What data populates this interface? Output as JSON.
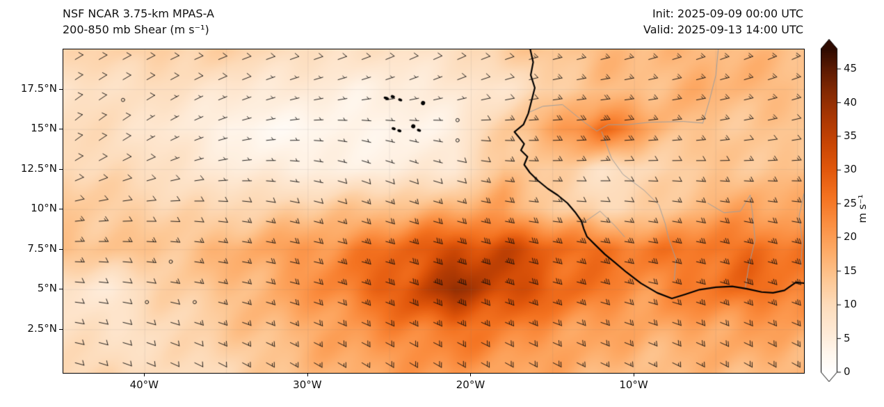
{
  "header": {
    "title_line1": "NSF NCAR 3.75-km MPAS-A",
    "title_line2": "200-850 mb Shear (m s⁻¹)",
    "init_label": "Init: 2025-09-09 00:00 UTC",
    "valid_label": "Valid: 2025-09-13 14:00 UTC"
  },
  "colorbar": {
    "label": "m s⁻¹"
  },
  "chart_data": {
    "type": "heatmap",
    "title": "200-850 mb Shear (m s⁻¹)",
    "model": "NSF NCAR 3.75-km MPAS-A",
    "init": "2025-09-09 00:00 UTC",
    "valid": "2025-09-13 14:00 UTC",
    "units": "m s⁻¹",
    "legend_position": "right",
    "lon_range": [
      -45.0,
      0.4
    ],
    "lat_range": [
      -0.2,
      20.0
    ],
    "x_tick_values": [
      -40,
      -30,
      -20,
      -10
    ],
    "x_tick_labels": [
      "40°W",
      "30°W",
      "20°W",
      "10°W"
    ],
    "y_tick_values": [
      17.5,
      15,
      12.5,
      10,
      7.5,
      5,
      2.5
    ],
    "y_tick_labels": [
      "17.5°N",
      "15°N",
      "12.5°N",
      "10°N",
      "7.5°N",
      "5°N",
      "2.5°N"
    ],
    "colorbar": {
      "ticks": [
        0,
        5,
        10,
        15,
        20,
        25,
        30,
        35,
        40,
        45
      ],
      "label": "m s⁻¹",
      "vmax_extend": 48,
      "extend_both_ends": true
    },
    "colormap": [
      [
        0,
        "#ffffff"
      ],
      [
        3,
        "#fff6ec"
      ],
      [
        6,
        "#feead6"
      ],
      [
        10,
        "#fddcbb"
      ],
      [
        14,
        "#fdc692"
      ],
      [
        18,
        "#fdab67"
      ],
      [
        22,
        "#fb8f42"
      ],
      [
        26,
        "#f47321"
      ],
      [
        30,
        "#e2580c"
      ],
      [
        34,
        "#c84504"
      ],
      [
        38,
        "#a83603"
      ],
      [
        42,
        "#802803"
      ],
      [
        45,
        "#5c1a02"
      ],
      [
        48,
        "#2e0a00"
      ]
    ],
    "grid": {
      "lons": [
        -45,
        -42,
        -39,
        -36,
        -33,
        -30,
        -27,
        -24,
        -21,
        -18,
        -15,
        -12,
        -9,
        -6,
        -3,
        0
      ],
      "lats": [
        20,
        17.5,
        15,
        12.5,
        10,
        7.5,
        5,
        2.5,
        0
      ],
      "shear": [
        [
          10,
          11,
          12,
          12,
          11,
          10,
          9,
          9,
          10,
          13,
          15,
          16,
          15,
          16,
          15,
          14
        ],
        [
          7,
          8,
          8,
          7,
          6,
          6,
          5,
          6,
          7,
          9,
          12,
          15,
          15,
          16,
          15,
          14
        ],
        [
          9,
          8,
          6,
          4,
          2,
          3,
          4,
          4,
          6,
          14,
          20,
          28,
          17,
          13,
          12,
          12
        ],
        [
          10,
          9,
          8,
          6,
          5,
          5,
          5,
          6,
          8,
          16,
          13,
          9,
          10,
          12,
          13,
          13
        ],
        [
          13,
          12,
          11,
          10,
          12,
          13,
          15,
          17,
          18,
          20,
          14,
          10,
          12,
          16,
          18,
          17
        ],
        [
          15,
          14,
          14,
          16,
          18,
          21,
          24,
          28,
          33,
          33,
          28,
          27,
          24,
          26,
          27,
          25
        ],
        [
          8,
          7,
          12,
          14,
          17,
          20,
          25,
          30,
          37,
          33,
          28,
          24,
          22,
          26,
          28,
          27
        ],
        [
          10,
          9,
          11,
          13,
          15,
          17,
          19,
          22,
          24,
          22,
          20,
          19,
          18,
          20,
          21,
          20
        ],
        [
          13,
          12,
          10,
          11,
          13,
          15,
          17,
          18,
          19,
          18,
          17,
          16,
          16,
          17,
          18,
          18
        ]
      ],
      "direction": [
        [
          60,
          62,
          65,
          68,
          70,
          70,
          68,
          65,
          65,
          70,
          75,
          75,
          72,
          70,
          68,
          65
        ],
        [
          55,
          58,
          60,
          65,
          70,
          75,
          75,
          72,
          70,
          75,
          80,
          82,
          80,
          78,
          75,
          72
        ],
        [
          50,
          55,
          60,
          70,
          80,
          90,
          100,
          100,
          95,
          90,
          88,
          85,
          85,
          82,
          80,
          78
        ],
        [
          60,
          65,
          70,
          80,
          90,
          100,
          110,
          110,
          105,
          95,
          90,
          88,
          90,
          92,
          90,
          88
        ],
        [
          80,
          85,
          90,
          95,
          100,
          105,
          108,
          108,
          105,
          100,
          95,
          95,
          98,
          100,
          100,
          98
        ],
        [
          90,
          92,
          95,
          98,
          100,
          102,
          104,
          105,
          105,
          104,
          102,
          100,
          100,
          102,
          104,
          104
        ],
        [
          95,
          98,
          100,
          102,
          104,
          106,
          108,
          110,
          110,
          108,
          106,
          105,
          104,
          106,
          108,
          108
        ],
        [
          100,
          104,
          108,
          110,
          112,
          114,
          115,
          116,
          115,
          114,
          112,
          110,
          110,
          112,
          114,
          114
        ],
        [
          105,
          110,
          115,
          118,
          120,
          121,
          122,
          122,
          121,
          120,
          118,
          116,
          116,
          118,
          120,
          120
        ]
      ]
    },
    "coastline": [
      [
        -16.4,
        20.1
      ],
      [
        -16.2,
        19.2
      ],
      [
        -16.35,
        18.4
      ],
      [
        -16.1,
        17.6
      ],
      [
        -16.3,
        16.8
      ],
      [
        -16.5,
        16.0
      ],
      [
        -16.8,
        15.3
      ],
      [
        -17.35,
        14.85
      ],
      [
        -17.1,
        14.55
      ],
      [
        -16.75,
        14.1
      ],
      [
        -16.95,
        13.7
      ],
      [
        -16.55,
        13.3
      ],
      [
        -16.75,
        12.8
      ],
      [
        -16.4,
        12.3
      ],
      [
        -15.9,
        11.8
      ],
      [
        -15.3,
        11.3
      ],
      [
        -14.7,
        10.9
      ],
      [
        -14.1,
        10.4
      ],
      [
        -13.6,
        9.8
      ],
      [
        -13.25,
        9.3
      ],
      [
        -13.1,
        8.8
      ],
      [
        -12.9,
        8.3
      ],
      [
        -12.4,
        7.8
      ],
      [
        -11.8,
        7.2
      ],
      [
        -11.2,
        6.7
      ],
      [
        -10.5,
        6.1
      ],
      [
        -9.6,
        5.4
      ],
      [
        -8.6,
        4.8
      ],
      [
        -7.7,
        4.45
      ],
      [
        -6.9,
        4.7
      ],
      [
        -6.0,
        5.0
      ],
      [
        -5.0,
        5.15
      ],
      [
        -4.0,
        5.2
      ],
      [
        -3.1,
        5.05
      ],
      [
        -2.2,
        4.85
      ],
      [
        -1.5,
        4.8
      ],
      [
        -0.8,
        4.95
      ],
      [
        -0.1,
        5.45
      ],
      [
        0.45,
        5.4
      ]
    ],
    "borders": [
      [
        [
          -16.5,
          16.05
        ],
        [
          -15.6,
          16.45
        ],
        [
          -14.4,
          16.55
        ],
        [
          -13.0,
          15.4
        ],
        [
          -12.3,
          14.9
        ],
        [
          -11.6,
          15.3
        ],
        [
          -10.4,
          15.3
        ],
        [
          -9.1,
          15.45
        ],
        [
          -7.0,
          15.5
        ],
        [
          -5.8,
          15.4
        ]
      ],
      [
        [
          -5.8,
          15.4
        ],
        [
          -5.4,
          16.8
        ],
        [
          -5.0,
          18.4
        ],
        [
          -4.85,
          20.1
        ]
      ],
      [
        [
          -12.0,
          14.85
        ],
        [
          -11.4,
          13.2
        ],
        [
          -10.7,
          12.2
        ],
        [
          -9.4,
          11.2
        ],
        [
          -8.5,
          10.3
        ],
        [
          -8.1,
          9.1
        ],
        [
          -7.9,
          8.2
        ],
        [
          -7.45,
          6.9
        ],
        [
          -7.55,
          5.6
        ]
      ],
      [
        [
          -3.2,
          5.1
        ],
        [
          -3.0,
          6.4
        ],
        [
          -2.6,
          8.1
        ],
        [
          -2.75,
          9.7
        ],
        [
          -2.9,
          10.9
        ]
      ],
      [
        [
          -5.5,
          10.4
        ],
        [
          -4.5,
          9.8
        ],
        [
          -3.5,
          9.9
        ],
        [
          -2.9,
          10.9
        ]
      ],
      [
        [
          -13.3,
          9.05
        ],
        [
          -12.1,
          9.9
        ],
        [
          -11.2,
          9.0
        ],
        [
          -10.6,
          8.3
        ]
      ],
      [
        [
          0.4,
          11.0
        ],
        [
          0.1,
          9.6
        ],
        [
          0.3,
          8.0
        ],
        [
          0.2,
          6.4
        ]
      ]
    ],
    "islands": [
      [
        -25.2,
        16.95,
        4,
        2
      ],
      [
        -24.8,
        17.05,
        3,
        2
      ],
      [
        -24.35,
        16.85,
        3,
        2
      ],
      [
        -22.95,
        16.65,
        3,
        3
      ],
      [
        -24.75,
        15.05,
        3,
        2
      ],
      [
        -24.4,
        14.92,
        3,
        2
      ],
      [
        -23.55,
        15.2,
        3,
        3
      ],
      [
        -23.2,
        14.95,
        3,
        2
      ]
    ],
    "calm_points": [
      [
        -41.2,
        16.3
      ],
      [
        -20.9,
        15.0
      ],
      [
        -40.0,
        4.7
      ],
      [
        -37.4,
        4.6
      ],
      [
        -38.6,
        7.3
      ]
    ],
    "wind_barbs": {
      "full_barb_value": 10,
      "half_barb_value": 5,
      "grid_cols": 31,
      "grid_rows": 16
    }
  }
}
